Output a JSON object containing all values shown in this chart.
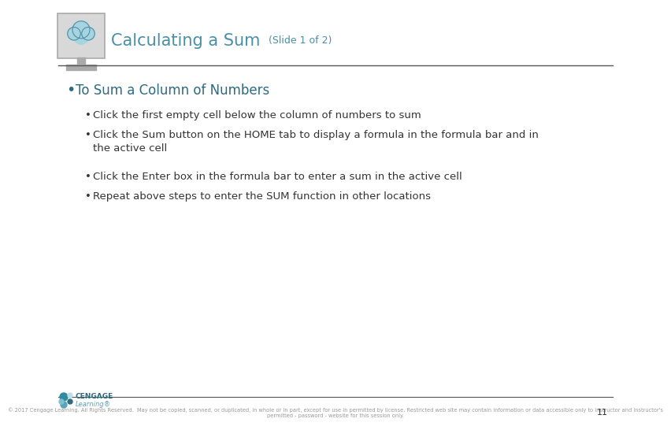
{
  "title_main": "Calculating a Sum",
  "title_sub": " (Slide 1 of 2)",
  "title_color": "#4a8fa8",
  "title_fontsize": 15,
  "title_sub_fontsize": 9,
  "bg_color": "#ffffff",
  "bullet1": "To Sum a Column of Numbers",
  "bullet1_color": "#2e6b80",
  "bullet1_fontsize": 12,
  "sub_bullets": [
    "Click the first empty cell below the column of numbers to sum",
    "Click the Sum button on the HOME tab to display a formula in the formula bar and in\nthe active cell",
    "Click the Enter box in the formula bar to enter a sum in the active cell",
    "Repeat above steps to enter the SUM function in other locations"
  ],
  "sub_bullet_color": "#333333",
  "sub_bullet_fontsize": 9.5,
  "line_color": "#555555",
  "footer_text": "© 2017 Cengage Learning. All Rights Reserved.  May not be copied, scanned, or duplicated, in whole or in part, except for use in permitted by license. Restricted web site may contain information or data accessible only to instructor and instructor's\npermitted - password - website for this session only.",
  "footer_color": "#999999",
  "footer_fontsize": 4.8,
  "page_number": "11",
  "cengage_color_dark": "#2e6b80",
  "cengage_color_light": "#5ba3b8",
  "icon_bg": "#d8d8d8",
  "icon_border": "#aaaaaa",
  "cloud_color": "#a8d4e0",
  "cloud_border": "#4a8fa8"
}
